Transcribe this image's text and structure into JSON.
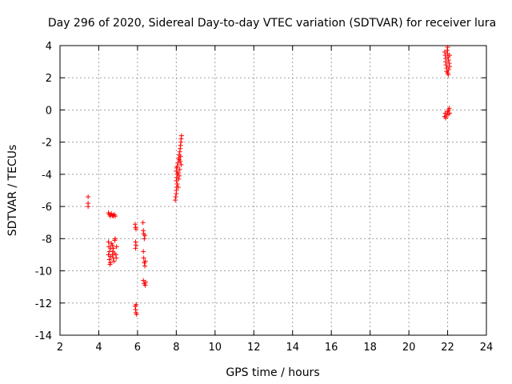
{
  "chart_data": {
    "type": "scatter",
    "title": "Day 296 of 2020, Sidereal Day-to-day VTEC variation (SDTVAR) for receiver lura",
    "xlabel": "GPS time / hours",
    "ylabel": "SDTVAR / TECUs",
    "xlim": [
      2,
      24
    ],
    "ylim": [
      -14,
      4
    ],
    "xticks": [
      2,
      4,
      6,
      8,
      10,
      12,
      14,
      16,
      18,
      20,
      22,
      24
    ],
    "yticks": [
      -14,
      -12,
      -10,
      -8,
      -6,
      -4,
      -2,
      0,
      2,
      4
    ],
    "grid": true,
    "marker": "plus",
    "color": "#ff0000",
    "series": [
      {
        "name": "SDTVAR",
        "points": [
          [
            3.45,
            -5.4
          ],
          [
            3.45,
            -5.8
          ],
          [
            3.45,
            -6.0
          ],
          [
            4.5,
            -6.4
          ],
          [
            4.55,
            -6.5
          ],
          [
            4.6,
            -6.6
          ],
          [
            4.65,
            -6.45
          ],
          [
            4.7,
            -6.55
          ],
          [
            4.75,
            -6.6
          ],
          [
            4.8,
            -6.5
          ],
          [
            4.85,
            -6.6
          ],
          [
            4.5,
            -8.2
          ],
          [
            4.52,
            -8.5
          ],
          [
            4.55,
            -8.8
          ],
          [
            4.5,
            -9.0
          ],
          [
            4.55,
            -9.3
          ],
          [
            4.6,
            -9.5
          ],
          [
            4.58,
            -9.6
          ],
          [
            4.62,
            -8.6
          ],
          [
            4.65,
            -8.3
          ],
          [
            4.6,
            -9.1
          ],
          [
            4.7,
            -8.4
          ],
          [
            4.72,
            -8.8
          ],
          [
            4.75,
            -9.2
          ],
          [
            4.78,
            -9.4
          ],
          [
            4.8,
            -8.9
          ],
          [
            4.82,
            -8.1
          ],
          [
            4.85,
            -8.0
          ],
          [
            4.88,
            -9.0
          ],
          [
            4.9,
            -9.2
          ],
          [
            4.92,
            -8.5
          ],
          [
            4.7,
            -9.0
          ],
          [
            4.75,
            -8.6
          ],
          [
            5.88,
            -7.1
          ],
          [
            5.9,
            -7.3
          ],
          [
            5.92,
            -7.4
          ],
          [
            5.9,
            -8.2
          ],
          [
            5.92,
            -8.4
          ],
          [
            5.9,
            -8.6
          ],
          [
            5.88,
            -12.2
          ],
          [
            5.9,
            -12.4
          ],
          [
            5.92,
            -12.6
          ],
          [
            5.95,
            -12.7
          ],
          [
            5.93,
            -12.1
          ],
          [
            6.28,
            -7.0
          ],
          [
            6.3,
            -7.5
          ],
          [
            6.32,
            -7.7
          ],
          [
            6.35,
            -8.0
          ],
          [
            6.38,
            -7.8
          ],
          [
            6.3,
            -8.8
          ],
          [
            6.32,
            -9.2
          ],
          [
            6.35,
            -9.5
          ],
          [
            6.38,
            -9.7
          ],
          [
            6.4,
            -9.4
          ],
          [
            6.3,
            -10.6
          ],
          [
            6.35,
            -10.8
          ],
          [
            6.4,
            -10.9
          ],
          [
            6.42,
            -10.7
          ],
          [
            7.95,
            -5.6
          ],
          [
            7.97,
            -5.4
          ],
          [
            8.0,
            -5.2
          ],
          [
            8.0,
            -5.0
          ],
          [
            8.02,
            -4.8
          ],
          [
            8.05,
            -4.6
          ],
          [
            8.0,
            -4.4
          ],
          [
            8.02,
            -4.2
          ],
          [
            8.05,
            -4.0
          ],
          [
            8.0,
            -3.8
          ],
          [
            8.02,
            -3.6
          ],
          [
            8.05,
            -3.5
          ],
          [
            8.08,
            -3.3
          ],
          [
            8.1,
            -3.9
          ],
          [
            8.12,
            -4.3
          ],
          [
            8.1,
            -4.8
          ],
          [
            8.15,
            -4.1
          ],
          [
            8.12,
            -3.0
          ],
          [
            8.15,
            -2.8
          ],
          [
            8.18,
            -2.6
          ],
          [
            8.2,
            -2.4
          ],
          [
            8.22,
            -2.2
          ],
          [
            8.24,
            -2.0
          ],
          [
            8.25,
            -1.8
          ],
          [
            8.27,
            -1.6
          ],
          [
            8.2,
            -3.2
          ],
          [
            8.22,
            -2.9
          ],
          [
            8.25,
            -3.4
          ],
          [
            8.18,
            -3.7
          ],
          [
            8.15,
            -3.1
          ],
          [
            21.85,
            -0.4
          ],
          [
            21.88,
            -0.2
          ],
          [
            21.9,
            -0.5
          ],
          [
            21.95,
            -0.3
          ],
          [
            22.0,
            -0.1
          ],
          [
            22.05,
            0.0
          ],
          [
            22.1,
            -0.2
          ],
          [
            22.08,
            0.1
          ],
          [
            22.02,
            -0.3
          ],
          [
            21.85,
            3.6
          ],
          [
            21.88,
            3.4
          ],
          [
            21.9,
            3.2
          ],
          [
            21.9,
            3.0
          ],
          [
            21.92,
            2.8
          ],
          [
            21.95,
            2.6
          ],
          [
            21.95,
            2.4
          ],
          [
            22.0,
            3.5
          ],
          [
            22.02,
            3.3
          ],
          [
            22.05,
            3.1
          ],
          [
            22.08,
            2.9
          ],
          [
            22.1,
            2.7
          ],
          [
            22.05,
            2.5
          ],
          [
            22.0,
            2.3
          ],
          [
            22.1,
            3.4
          ],
          [
            21.98,
            3.7
          ],
          [
            22.0,
            3.9
          ],
          [
            22.03,
            2.2
          ]
        ]
      }
    ]
  }
}
